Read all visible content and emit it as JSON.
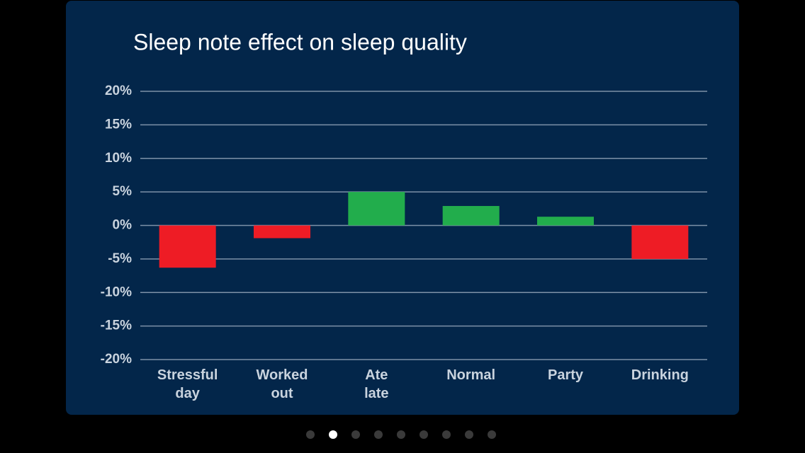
{
  "chart_data": {
    "type": "bar",
    "title": "Sleep note effect on sleep quality",
    "categories": [
      "Stressful\nday",
      "Worked\nout",
      "Ate\nlate",
      "Normal",
      "Party",
      "Drinking"
    ],
    "values": [
      -6.3,
      -1.9,
      5,
      2.9,
      1.3,
      -5
    ],
    "colors": [
      "#ee1c25",
      "#ee1c25",
      "#22ad4c",
      "#22ad4c",
      "#22ad4c",
      "#ee1c25"
    ],
    "ylim": [
      -20,
      20
    ],
    "yticks": [
      {
        "value": -20,
        "label": "-20%"
      },
      {
        "value": -15,
        "label": "-15%"
      },
      {
        "value": -10,
        "label": "-10%"
      },
      {
        "value": -5,
        "label": "-5%"
      },
      {
        "value": 0,
        "label": "0%"
      },
      {
        "value": 5,
        "label": "5%"
      },
      {
        "value": 10,
        "label": "10%"
      },
      {
        "value": 15,
        "label": "15%"
      },
      {
        "value": 20,
        "label": "20%"
      }
    ],
    "grid": true
  }
}
